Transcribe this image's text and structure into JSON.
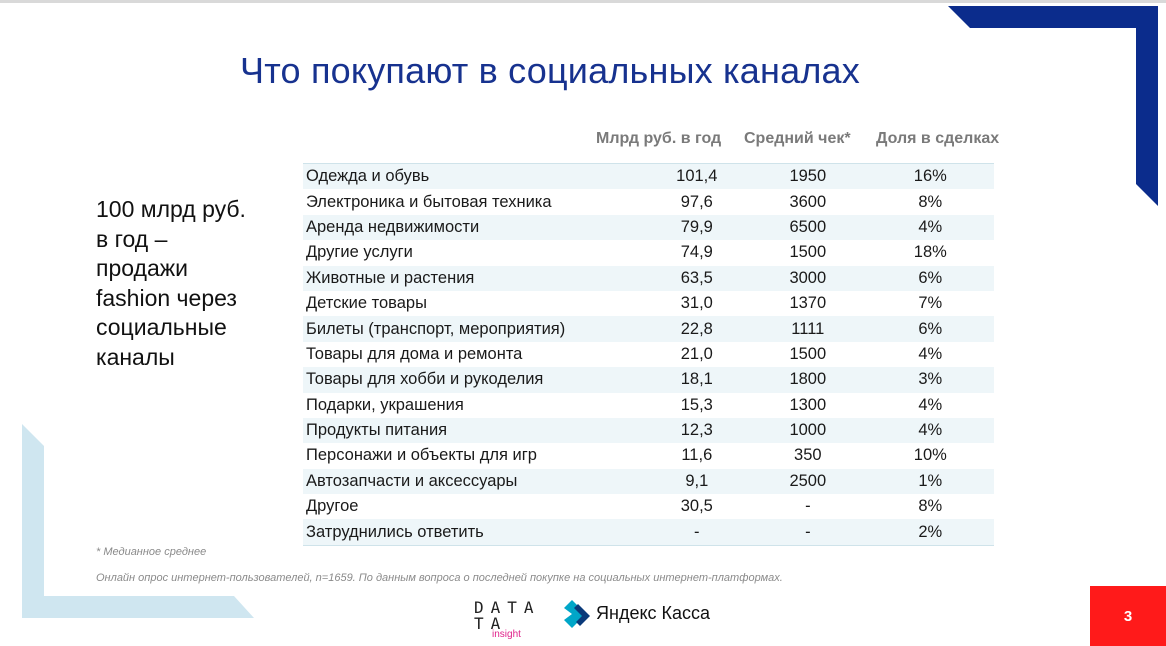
{
  "title": "Что покупают в социальных каналах",
  "side_text": [
    "100 млрд руб.",
    "в год –",
    "продажи",
    "fashion через",
    "социальные",
    "каналы"
  ],
  "table": {
    "headers": {
      "value": "Млрд руб. в год",
      "check": "Средний чек*",
      "share": "Доля в сделках"
    },
    "rows": [
      {
        "category": "Одежда и обувь",
        "value": "101,4",
        "check": "1950",
        "share": "16%"
      },
      {
        "category": "Электроника и бытовая техника",
        "value": "97,6",
        "check": "3600",
        "share": "8%"
      },
      {
        "category": "Аренда недвижимости",
        "value": "79,9",
        "check": "6500",
        "share": "4%"
      },
      {
        "category": "Другие услуги",
        "value": "74,9",
        "check": "1500",
        "share": "18%"
      },
      {
        "category": "Животные и растения",
        "value": "63,5",
        "check": "3000",
        "share": "6%"
      },
      {
        "category": "Детские товары",
        "value": "31,0",
        "check": "1370",
        "share": "7%"
      },
      {
        "category": "Билеты (транспорт, мероприятия)",
        "value": "22,8",
        "check": "1111",
        "share": "6%"
      },
      {
        "category": "Товары для дома и ремонта",
        "value": "21,0",
        "check": "1500",
        "share": "4%"
      },
      {
        "category": "Товары для хобби и рукоделия",
        "value": "18,1",
        "check": "1800",
        "share": "3%"
      },
      {
        "category": "Подарки, украшения",
        "value": "15,3",
        "check": "1300",
        "share": "4%"
      },
      {
        "category": "Продукты питания",
        "value": "12,3",
        "check": "1000",
        "share": "4%"
      },
      {
        "category": "Персонажи и объекты для игр",
        "value": "11,6",
        "check": "350",
        "share": "10%"
      },
      {
        "category": "Автозапчасти и аксессуары",
        "value": "9,1",
        "check": "2500",
        "share": "1%"
      },
      {
        "category": "Другое",
        "value": "30,5",
        "check": "-",
        "share": "8%"
      },
      {
        "category": "Затруднились ответить",
        "value": "-",
        "check": "-",
        "share": "2%"
      }
    ]
  },
  "footnotes": {
    "median": "* Медианное среднее",
    "source": "Онлайн опрос интернет-пользователей, n=1659. По данным вопроса о последней покупке на социальных интернет-платформах."
  },
  "logos": {
    "data_insight": {
      "line1": "DATA",
      "line2": "TA",
      "sub": "insight"
    },
    "yandex_kassa": {
      "name": "Яндекс Касса",
      "icon": "yandex-kassa-logo-icon"
    }
  },
  "page_number": "3",
  "colors": {
    "title": "#17328f",
    "accent_navy": "#0b2c8c",
    "accent_light": "#c9e4ef",
    "badge": "#ff1a1a"
  }
}
